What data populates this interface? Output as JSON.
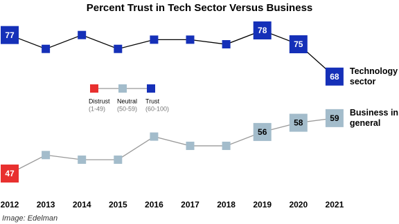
{
  "chart_data": {
    "type": "line",
    "title": "Percent Trust in Tech Sector Versus Business",
    "source": "Image: Edelman",
    "categories": [
      "2012",
      "2013",
      "2014",
      "2015",
      "2016",
      "2017",
      "2018",
      "2019",
      "2020",
      "2021"
    ],
    "series": [
      {
        "name": "Technology sector",
        "color": "#000000",
        "values": [
          77,
          74,
          77,
          74,
          76,
          76,
          75,
          78,
          75,
          68
        ],
        "value_labels": [
          "77",
          null,
          null,
          null,
          null,
          null,
          null,
          "78",
          "75",
          "68"
        ]
      },
      {
        "name": "Business in general",
        "color": "#999999",
        "values": [
          47,
          51,
          50,
          50,
          55,
          53,
          53,
          56,
          58,
          59
        ],
        "value_labels": [
          "47",
          null,
          null,
          null,
          null,
          null,
          null,
          "56",
          "58",
          "59"
        ]
      }
    ],
    "legend": [
      {
        "name": "Distrust",
        "range": "(1-49)",
        "min": 1,
        "max": 49,
        "color": "#e8302f"
      },
      {
        "name": "Neutral",
        "range": "(50-59)",
        "min": 50,
        "max": 59,
        "color": "#a3bccb"
      },
      {
        "name": "Trust",
        "range": "(60-100)",
        "min": 60,
        "max": 100,
        "color": "#1530b8"
      }
    ]
  }
}
